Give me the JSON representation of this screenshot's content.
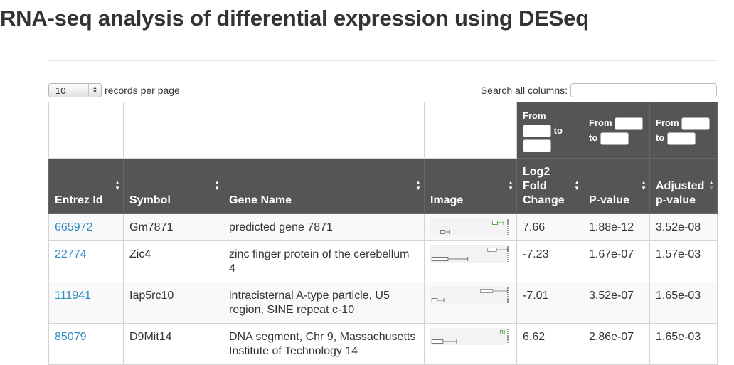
{
  "title": "RNA-seq analysis of differential expression using DESeq",
  "length": {
    "value": "10",
    "suffix": "records per page"
  },
  "search": {
    "label": "Search all columns:",
    "value": ""
  },
  "filters": {
    "from": "From",
    "to": "to"
  },
  "columns": [
    {
      "label": "Entrez Id",
      "sort": "both"
    },
    {
      "label": "Symbol",
      "sort": "both"
    },
    {
      "label": "Gene Name",
      "sort": "both"
    },
    {
      "label": "Image",
      "sort": "both"
    },
    {
      "label": "Log2 Fold Change",
      "sort": "both"
    },
    {
      "label": "P-value",
      "sort": "both"
    },
    {
      "label": "Adjusted p-value",
      "sort": "asc"
    }
  ],
  "rows": [
    {
      "entrez": "665972",
      "symbol": "Gm7871",
      "name": "predicted gene 7871",
      "log2fc": "7.66",
      "pvalue": "1.88e-12",
      "padj": "3.52e-08",
      "plot": {
        "a": [
          0.13,
          0.24
        ],
        "b": [
          0.78,
          0.92
        ],
        "b_color": "#5aa84a"
      }
    },
    {
      "entrez": "22774",
      "symbol": "Zic4",
      "name": "zinc finger protein of the cerebellum 4",
      "log2fc": "-7.23",
      "pvalue": "1.67e-07",
      "padj": "1.57e-03",
      "plot": {
        "a": [
          0.02,
          0.47
        ],
        "b": [
          0.72,
          0.97
        ],
        "b_color": "#9a9a9a"
      }
    },
    {
      "entrez": "111941",
      "symbol": "Iap5rc10",
      "name": "intracisternal A-type particle, U5 region, SINE repeat c-10",
      "log2fc": "-7.01",
      "pvalue": "3.52e-07",
      "padj": "1.65e-03",
      "plot": {
        "a": [
          0.02,
          0.17
        ],
        "b": [
          0.63,
          0.97
        ],
        "b_color": "#9a9a9a"
      }
    },
    {
      "entrez": "85079",
      "symbol": "D9Mit14",
      "name": "DNA segment, Chr 9, Massachusetts Institute of Technology 14",
      "log2fc": "6.62",
      "pvalue": "2.86e-07",
      "padj": "1.65e-03",
      "plot": {
        "a": [
          0.02,
          0.33
        ],
        "b": [
          0.88,
          0.93
        ],
        "b_color": "#5aa84a"
      }
    }
  ]
}
